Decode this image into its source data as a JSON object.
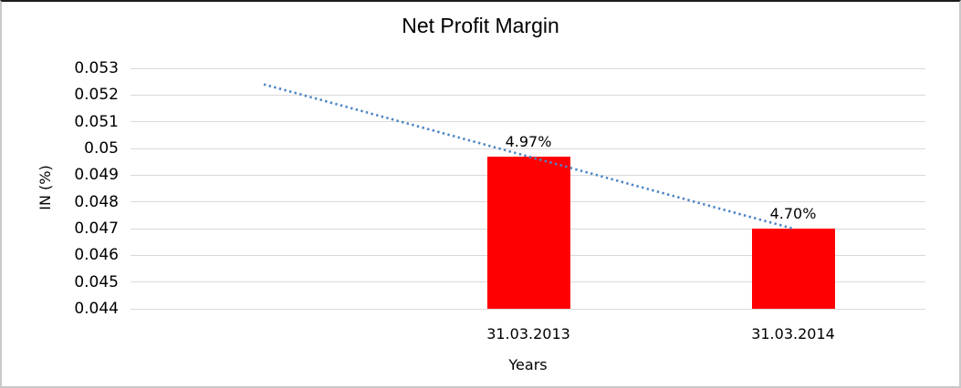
{
  "chart_data": {
    "type": "bar",
    "title": "Net Profit Margin",
    "xlabel": "Years",
    "ylabel": "IN (%)",
    "categories": [
      "31.03.2013",
      "31.03.2014"
    ],
    "series": [
      {
        "name": "Net Profit Margin",
        "values": [
          0.0497,
          0.047
        ],
        "data_labels": [
          "4.97%",
          "4.70%"
        ],
        "color": "#ff0000"
      }
    ],
    "ylim": [
      0.044,
      0.053
    ],
    "ytick_step": 0.001,
    "ytick_labels": [
      "0.053",
      "0.052",
      "0.051",
      "0.05",
      "0.049",
      "0.048",
      "0.047",
      "0.046",
      "0.045",
      "0.044"
    ],
    "grid": "horizontal",
    "legend": "none",
    "trendline": {
      "type": "linear",
      "style": "dotted",
      "color": "#4e86c6",
      "points_category_x": [
        -1,
        1
      ],
      "points_y": [
        0.0524,
        0.047
      ]
    }
  }
}
